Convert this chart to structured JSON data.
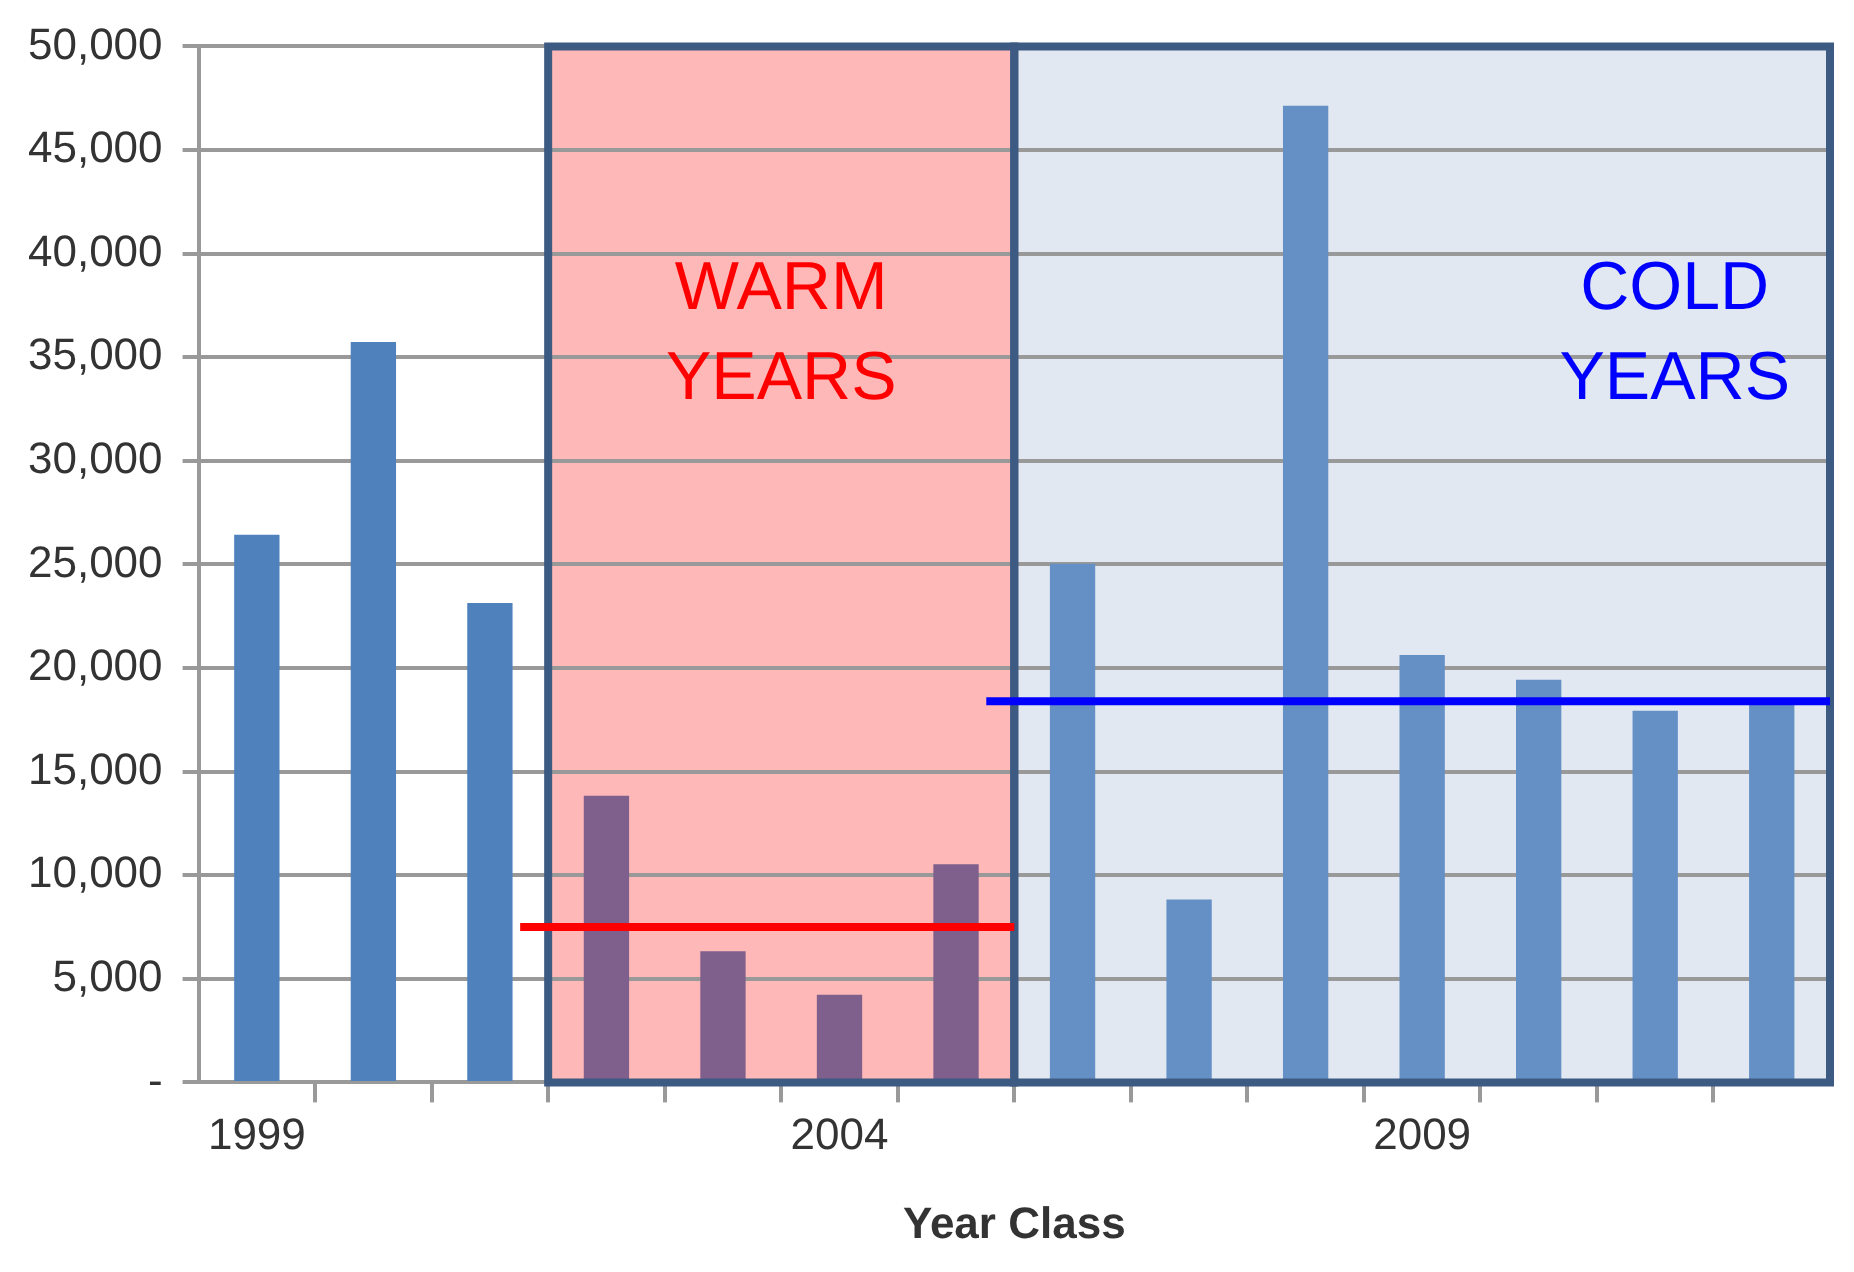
{
  "chart_data": {
    "type": "bar",
    "xlabel": "Year Class",
    "x": [
      1999,
      2000,
      2001,
      2002,
      2003,
      2004,
      2005,
      2006,
      2007,
      2008,
      2009,
      2010,
      2011,
      2012
    ],
    "values": [
      26400,
      35700,
      23100,
      13800,
      6300,
      4200,
      10500,
      25000,
      8800,
      47100,
      20600,
      19400,
      17900,
      18300
    ],
    "colors": [
      "#4f81bd",
      "#4f81bd",
      "#4f81bd",
      "#7f5f8c",
      "#7f5f8c",
      "#7f5f8c",
      "#7f5f8c",
      "#6490c5",
      "#6490c5",
      "#6490c5",
      "#6490c5",
      "#6490c5",
      "#6490c5",
      "#6490c5"
    ],
    "xlim": [
      1998.5,
      2012.5
    ],
    "xticks": [
      {
        "value": 1999,
        "label": "1999"
      },
      {
        "value": 1999.5,
        "label": null
      },
      {
        "value": 2000.5,
        "label": null
      },
      {
        "value": 2001.5,
        "label": null
      },
      {
        "value": 2002.5,
        "label": null
      },
      {
        "value": 2003.5,
        "label": null
      },
      {
        "value": 2004,
        "label": "2004"
      },
      {
        "value": 2004.5,
        "label": null
      },
      {
        "value": 2005.5,
        "label": null
      },
      {
        "value": 2006.5,
        "label": null
      },
      {
        "value": 2007.5,
        "label": null
      },
      {
        "value": 2008.5,
        "label": null
      },
      {
        "value": 2009,
        "label": "2009"
      },
      {
        "value": 2009.5,
        "label": null
      },
      {
        "value": 2010.5,
        "label": null
      },
      {
        "value": 2011.5,
        "label": null
      }
    ],
    "ylim": [
      0,
      50000
    ],
    "yticks": [
      {
        "value": 0,
        "label": "-"
      },
      {
        "value": 5000,
        "label": "5,000"
      },
      {
        "value": 10000,
        "label": "10,000"
      },
      {
        "value": 15000,
        "label": "15,000"
      },
      {
        "value": 20000,
        "label": "20,000"
      },
      {
        "value": 25000,
        "label": "25,000"
      },
      {
        "value": 30000,
        "label": "30,000"
      },
      {
        "value": 35000,
        "label": "35,000"
      },
      {
        "value": 40000,
        "label": "40,000"
      },
      {
        "value": 45000,
        "label": "45,000"
      },
      {
        "value": 50000,
        "label": "50,000"
      }
    ],
    "grid": "y",
    "bands": [
      {
        "axis": "x",
        "from": 2001.5,
        "to": 2005.5,
        "label": "WARM YEARS",
        "color": "#ffb8b8"
      },
      {
        "axis": "x",
        "from": 2005.5,
        "to": 2012.5,
        "label": "COLD YEARS",
        "color": "#e1e8f2"
      }
    ],
    "ref_lines": [
      {
        "axis": "y",
        "value": 7500,
        "color": "#ff0000"
      },
      {
        "axis": "y",
        "value": 18400,
        "color": "#0000ff"
      }
    ],
    "legend": false
  }
}
